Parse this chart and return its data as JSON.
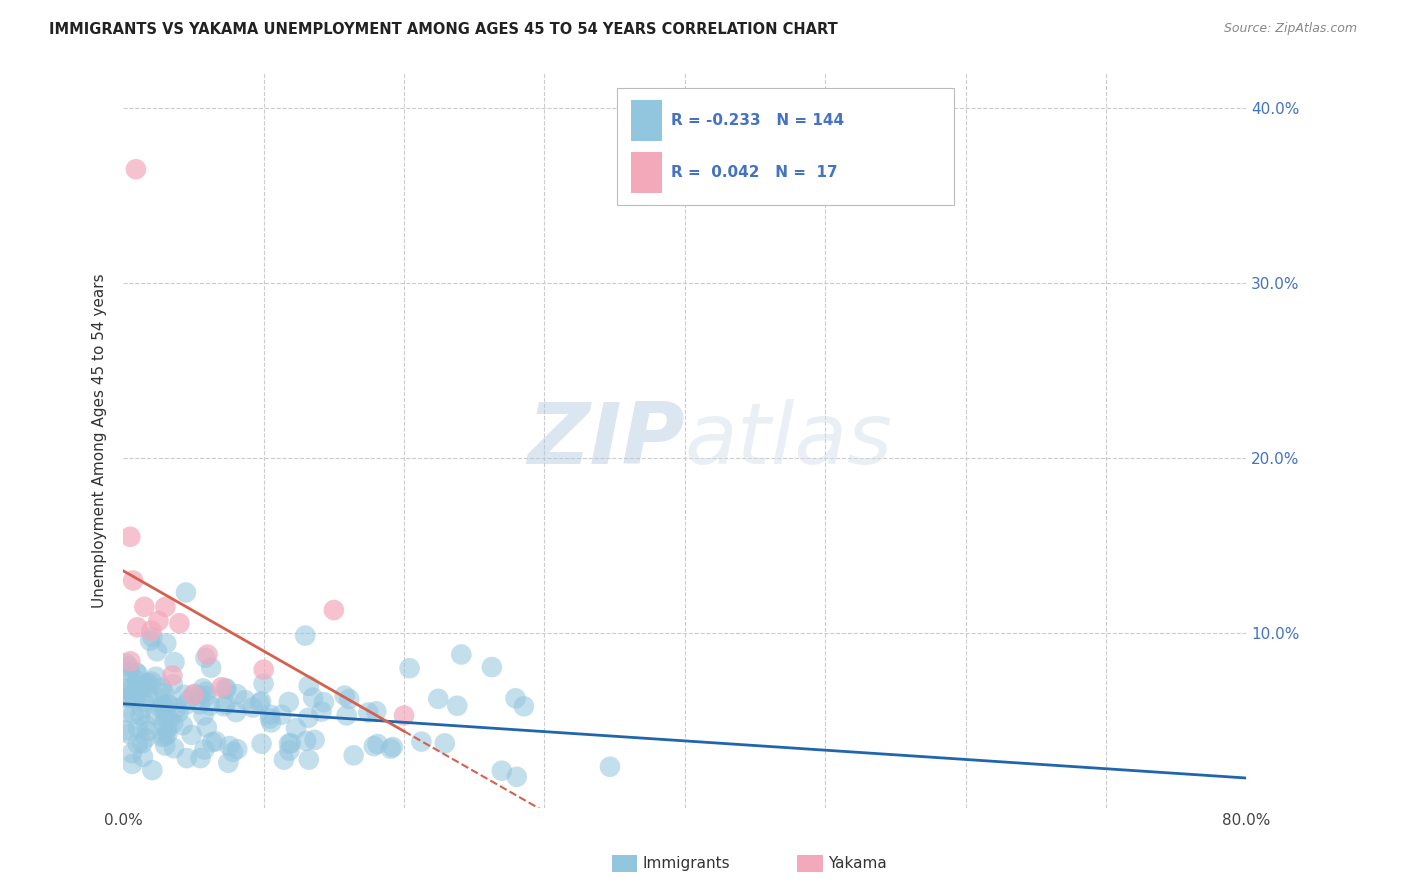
{
  "title": "IMMIGRANTS VS YAKAMA UNEMPLOYMENT AMONG AGES 45 TO 54 YEARS CORRELATION CHART",
  "source": "Source: ZipAtlas.com",
  "ylabel": "Unemployment Among Ages 45 to 54 years",
  "xlim": [
    0.0,
    0.8
  ],
  "ylim": [
    0.0,
    0.42
  ],
  "immigrants_color": "#92c5de",
  "yakama_color": "#f4a9bb",
  "immigrants_line_color": "#2166ac",
  "yakama_line_color": "#d6604d",
  "immigrants_R": -0.233,
  "immigrants_N": 144,
  "yakama_R": 0.042,
  "yakama_N": 17,
  "watermark_zip": "ZIP",
  "watermark_atlas": "atlas",
  "background_color": "#ffffff",
  "grid_color": "#cccccc",
  "title_color": "#333333",
  "legend_R_color": "#4472c4"
}
